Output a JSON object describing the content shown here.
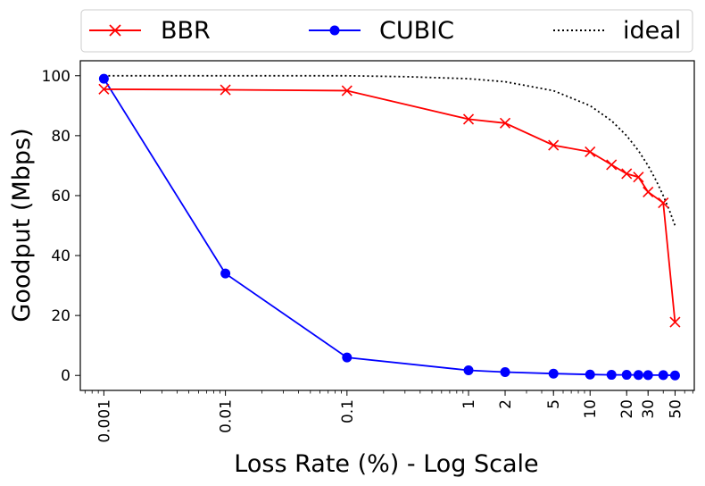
{
  "chart_data": {
    "type": "line",
    "xscale": "log",
    "xlabel": "Loss Rate (%) - Log Scale",
    "ylabel": "Goodput (Mbps)",
    "xlim": [
      0.00064,
      72
    ],
    "ylim": [
      -5,
      105
    ],
    "x_ticks": [
      {
        "value": 0.001,
        "label": "0.001"
      },
      {
        "value": 0.01,
        "label": "0.01"
      },
      {
        "value": 0.1,
        "label": "0.1"
      },
      {
        "value": 1,
        "label": "1"
      },
      {
        "value": 2,
        "label": "2"
      },
      {
        "value": 5,
        "label": "5"
      },
      {
        "value": 10,
        "label": "10"
      },
      {
        "value": 20,
        "label": "20"
      },
      {
        "value": 30,
        "label": "30"
      },
      {
        "value": 50,
        "label": "50"
      }
    ],
    "y_ticks": [
      {
        "value": 0,
        "label": "0"
      },
      {
        "value": 20,
        "label": "20"
      },
      {
        "value": 40,
        "label": "40"
      },
      {
        "value": 60,
        "label": "60"
      },
      {
        "value": 80,
        "label": "80"
      },
      {
        "value": 100,
        "label": "100"
      }
    ],
    "grid": false,
    "legend_placement": "top, outside plot, 3 columns",
    "series": [
      {
        "name": "BBR",
        "color": "#ff0000",
        "marker": "x",
        "linestyle": "solid",
        "x": [
          0.001,
          0.01,
          0.1,
          1,
          2,
          5,
          10,
          15,
          20,
          25,
          30,
          40,
          50
        ],
        "y": [
          95.5,
          95.3,
          95.0,
          85.5,
          84.2,
          76.8,
          74.6,
          70.3,
          67.3,
          66.2,
          61.2,
          57.6,
          17.8
        ]
      },
      {
        "name": "CUBIC",
        "color": "#0000ff",
        "marker": "circle",
        "linestyle": "solid",
        "x": [
          0.001,
          0.01,
          0.1,
          1,
          2,
          5,
          10,
          15,
          20,
          25,
          30,
          40,
          50
        ],
        "y": [
          99.0,
          34.0,
          6.0,
          1.7,
          1.1,
          0.6,
          0.3,
          0.2,
          0.2,
          0.15,
          0.1,
          0.1,
          0.0
        ]
      },
      {
        "name": "ideal",
        "color": "#000000",
        "marker": "none",
        "linestyle": "dotted",
        "x": [
          0.001,
          0.003,
          0.01,
          0.03,
          0.1,
          0.3,
          1,
          2,
          5,
          10,
          15,
          20,
          25,
          30,
          35,
          40,
          45,
          50
        ],
        "y": [
          100,
          100,
          100,
          100,
          100,
          99.7,
          99.0,
          98.0,
          95.0,
          90.0,
          85.0,
          80.0,
          75.0,
          70.0,
          65.0,
          60.0,
          55.0,
          50.0
        ]
      }
    ]
  }
}
